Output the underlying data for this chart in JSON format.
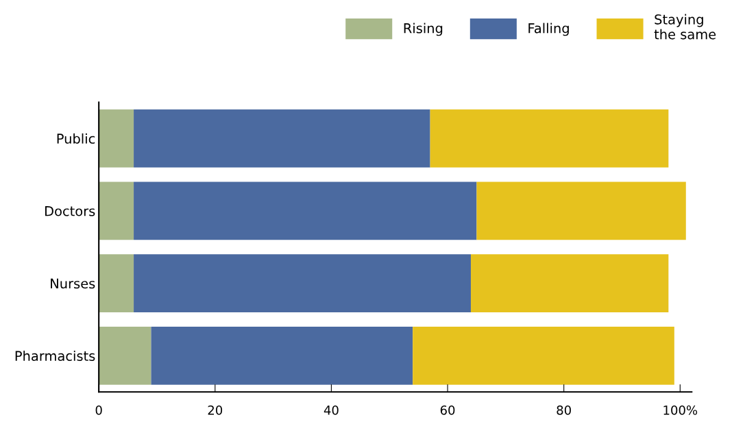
{
  "chart_data": {
    "type": "bar",
    "orientation": "horizontal",
    "stacked": true,
    "categories": [
      "Public",
      "Doctors",
      "Nurses",
      "Pharmacists"
    ],
    "series": [
      {
        "name": "Rising",
        "color": "#a8b88a",
        "values": [
          6,
          6,
          6,
          9
        ]
      },
      {
        "name": "Falling",
        "color": "#4b6aa0",
        "values": [
          51,
          59,
          58,
          45
        ]
      },
      {
        "name": "Staying the same",
        "color": "#e6c21e",
        "values": [
          41,
          36,
          34,
          45
        ]
      }
    ],
    "xlim": [
      0,
      102
    ],
    "xticks": [
      0,
      20,
      40,
      60,
      80,
      {
        "value": 100,
        "label": "100%"
      }
    ],
    "grid": false,
    "legend": "top right"
  }
}
